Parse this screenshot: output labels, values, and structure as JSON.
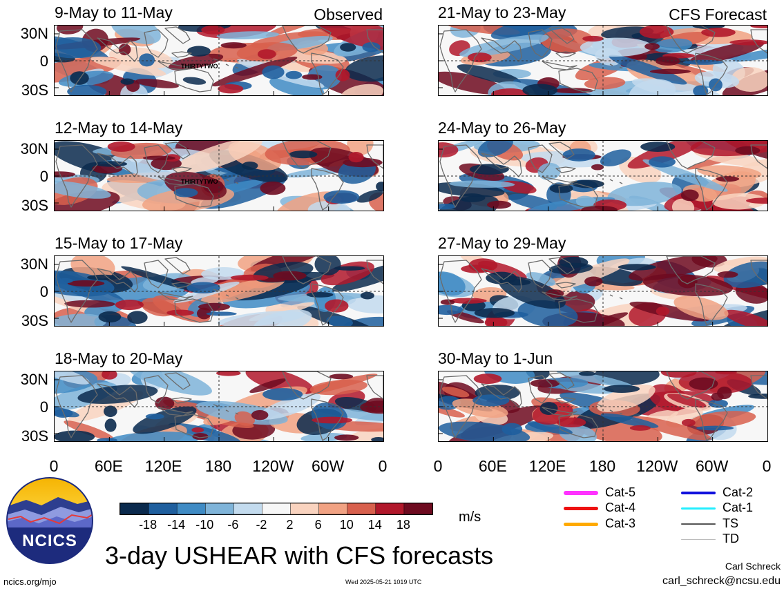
{
  "panels": [
    {
      "title": "9-May to 11-May",
      "label": "Observed",
      "storm": "THIRTYTWO"
    },
    {
      "title": "21-May to 23-May",
      "label": "CFS Forecast"
    },
    {
      "title": "12-May to 14-May",
      "storm": "THIRTYTWO"
    },
    {
      "title": "24-May to 26-May"
    },
    {
      "title": "15-May to 17-May"
    },
    {
      "title": "27-May to 29-May"
    },
    {
      "title": "18-May to 20-May"
    },
    {
      "title": "30-May to 1-Jun"
    }
  ],
  "lat_labels": [
    "30N",
    "0",
    "30S"
  ],
  "lon_labels": [
    "0",
    "60E",
    "120E",
    "180",
    "120W",
    "60W",
    "0"
  ],
  "colorbar": {
    "ticks": [
      "-18",
      "-14",
      "-10",
      "-6",
      "-2",
      "2",
      "6",
      "10",
      "14",
      "18"
    ],
    "colors": [
      "#0b2a4d",
      "#1f5f9e",
      "#3f8bc4",
      "#7fb4d9",
      "#c3dbee",
      "#f7f7f7",
      "#f9d3bf",
      "#f1a283",
      "#d8604d",
      "#b1182b",
      "#6e0b20"
    ],
    "unit": "m/s"
  },
  "legend": [
    {
      "label": "Cat-5",
      "color": "#ff33ff",
      "width": 6
    },
    {
      "label": "Cat-4",
      "color": "#ee1111",
      "width": 5
    },
    {
      "label": "Cat-3",
      "color": "#ffaa00",
      "width": 5
    },
    {
      "label": "Cat-2",
      "color": "#1111dd",
      "width": 4
    },
    {
      "label": "Cat-1",
      "color": "#22eeff",
      "width": 3
    },
    {
      "label": "TS",
      "color": "#555555",
      "width": 2
    },
    {
      "label": "TD",
      "color": "#bbbbbb",
      "width": 1
    }
  ],
  "logo_text": "NCICS",
  "main_title": "3-day USHEAR with CFS forecasts",
  "author": "Carl Schreck",
  "email": "carl_schreck@ncsu.edu",
  "site": "ncics.org/mjo",
  "timestamp": "Wed 2025-05-21 1019 UTC"
}
